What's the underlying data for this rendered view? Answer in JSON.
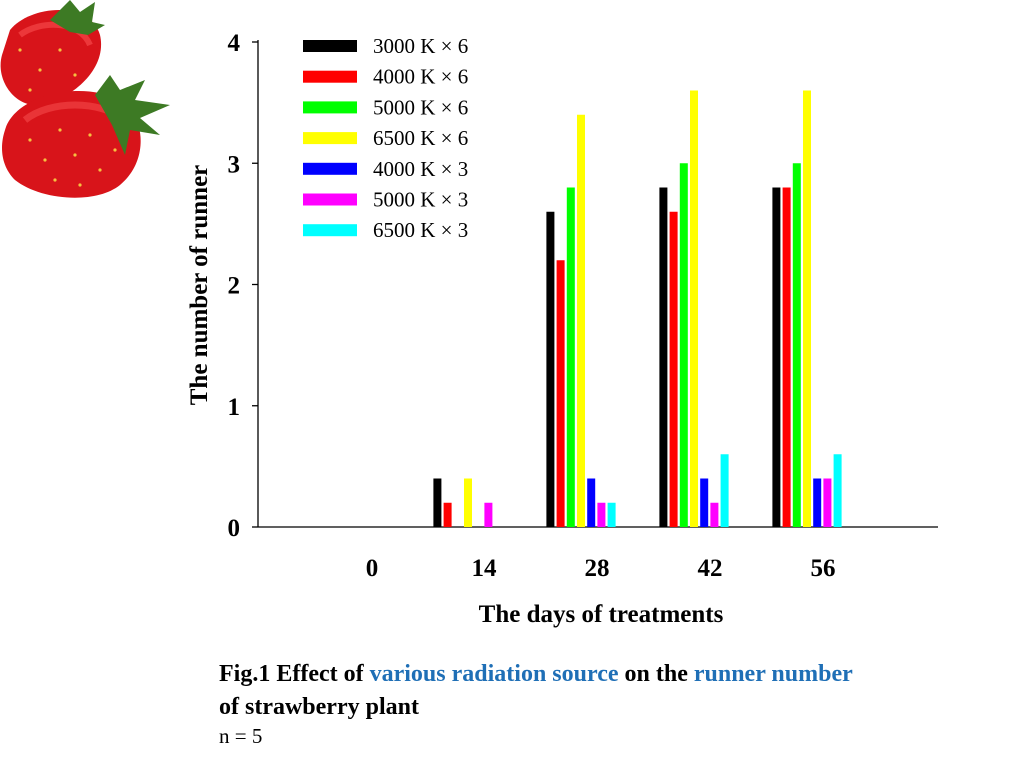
{
  "chart_data": {
    "type": "bar",
    "xlabel": "The days of treatments",
    "ylabel": "The number of runner",
    "ylim": [
      0,
      4
    ],
    "yticks": [
      0,
      1,
      2,
      3,
      4
    ],
    "categories": [
      "0",
      "14",
      "28",
      "42",
      "56"
    ],
    "legend_position": "top-left",
    "series": [
      {
        "name": "3000 K ×  6",
        "color": "#000000",
        "values": [
          0,
          0.4,
          2.6,
          2.8,
          2.8
        ]
      },
      {
        "name": "4000 K ×  6",
        "color": "#ff0000",
        "values": [
          0,
          0.2,
          2.2,
          2.6,
          2.8
        ]
      },
      {
        "name": "5000 K ×  6",
        "color": "#00ff00",
        "values": [
          0,
          0,
          2.8,
          3.0,
          3.0
        ]
      },
      {
        "name": "6500 K ×  6",
        "color": "#ffff00",
        "values": [
          0,
          0.4,
          3.4,
          3.6,
          3.6
        ]
      },
      {
        "name": "4000 K ×  3",
        "color": "#0000ff",
        "values": [
          0,
          0,
          0.4,
          0.4,
          0.4
        ]
      },
      {
        "name": "5000 K ×  3",
        "color": "#ff00ff",
        "values": [
          0,
          0.2,
          0.2,
          0.2,
          0.4
        ]
      },
      {
        "name": "6500 K ×  3",
        "color": "#00ffff",
        "values": [
          0,
          0,
          0.2,
          0.6,
          0.6
        ]
      }
    ]
  },
  "caption": {
    "part1": "Fig.1 Effect of ",
    "part2": "various radiation source",
    "part3": " on the ",
    "part4": "runner number",
    "part5": "of strawberry plant",
    "n": "n = 5"
  },
  "decoration": {
    "icon": "strawberry-icon",
    "accent_color": "#1f6fb6"
  }
}
